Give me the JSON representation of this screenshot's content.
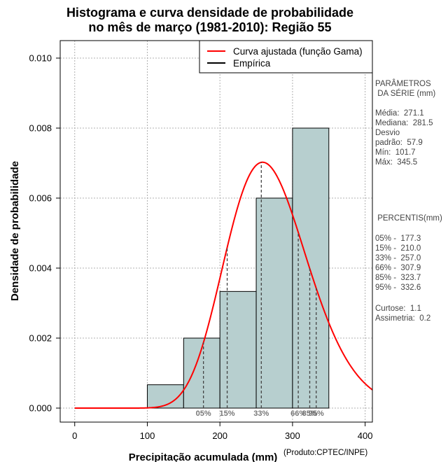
{
  "title_line1": "Histograma e curva densidade de probabilidade",
  "title_line2": "no mês de março (1981-2010): Região 55",
  "credit": "(Produto:CPTEC/INPE)",
  "chart_data": {
    "type": "bar",
    "subtype": "histogram_with_density_curve",
    "xlabel": "Precipitação acumulada (mm)",
    "ylabel": "Densidade de probabilidade",
    "xlim": [
      -20,
      410
    ],
    "ylim": [
      -0.0004,
      0.0105
    ],
    "xticks": [
      "0",
      "100",
      "200",
      "300",
      "400"
    ],
    "yticks": [
      "0.000",
      "0.002",
      "0.004",
      "0.006",
      "0.008",
      "0.010"
    ],
    "grid": true,
    "bins": [
      {
        "from": 100,
        "to": 150,
        "density": 0.000667
      },
      {
        "from": 150,
        "to": 200,
        "density": 0.002
      },
      {
        "from": 200,
        "to": 250,
        "density": 0.003333
      },
      {
        "from": 250,
        "to": 300,
        "density": 0.006
      },
      {
        "from": 300,
        "to": 350,
        "density": 0.008
      }
    ],
    "bar_color": "#b7cfcf",
    "curve": {
      "name": "Curva ajustada (função Gama)",
      "color": "#ff0000",
      "distribution": "gamma",
      "mean": 271.1,
      "sd": 57.9
    },
    "legend": {
      "position": "top-right",
      "entries": [
        {
          "label": "Curva ajustada (função Gama)",
          "color": "#ff0000"
        },
        {
          "label": "Empírica",
          "color": "#000000"
        }
      ]
    },
    "percentile_lines": [
      {
        "label": "05%",
        "x": 177.3
      },
      {
        "label": "15%",
        "x": 210.0
      },
      {
        "label": "33%",
        "x": 257.0
      },
      {
        "label": "66%",
        "x": 307.9
      },
      {
        "label": "85%",
        "x": 323.7
      },
      {
        "label": "95%",
        "x": 332.6
      }
    ]
  },
  "stats_panel": {
    "heading_line1": "PARÂMETROS",
    "heading_line2": " DA SÉRIE (mm)",
    "media": "Média:  271.1",
    "mediana": "Mediana:  281.5",
    "desvio1": "Desvio",
    "desvio2": "padrão:  57.9",
    "min": "Mín:  101.7",
    "max": "Máx:  345.5"
  },
  "percentis_panel": {
    "heading": " PERCENTIS(mm)",
    "p05": "05% -  177.3",
    "p15": "15% -  210.0",
    "p33": "33% -  257.0",
    "p66": "66% -  307.9",
    "p85": "85% -  323.7",
    "p95": "95% -  332.6",
    "curtose": "Curtose:  1.1",
    "assimetria": "Assimetria:  0.2"
  }
}
